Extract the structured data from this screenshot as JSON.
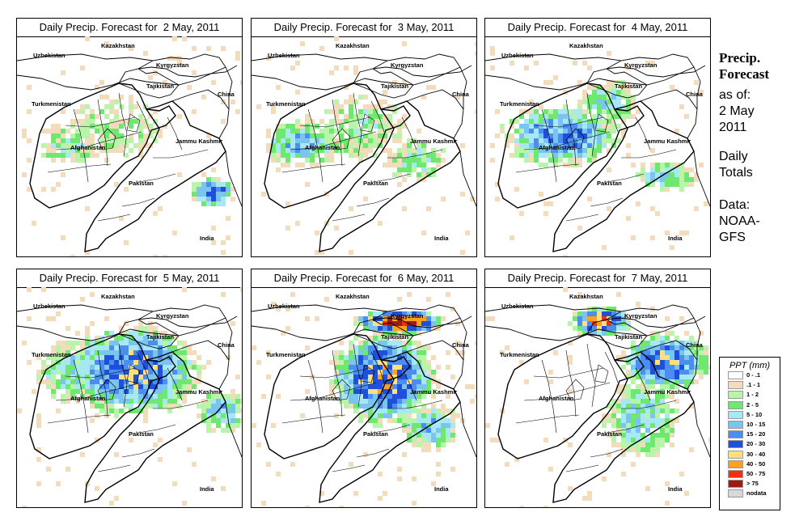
{
  "panels": [
    {
      "title": "Daily Precip. Forecast for  2 May, 2011"
    },
    {
      "title": "Daily Precip. Forecast for  3 May, 2011"
    },
    {
      "title": "Daily Precip. Forecast for  4 May, 2011"
    },
    {
      "title": "Daily Precip. Forecast for  5 May, 2011"
    },
    {
      "title": "Daily Precip. Forecast for  6 May, 2011"
    },
    {
      "title": "Daily Precip. Forecast for  7 May, 2011"
    }
  ],
  "map_labels": {
    "kazakhstan": "Kazakhstan",
    "uzbekistan": "Uzbekistan",
    "kyrgyzstan": "Kyrgyzstan",
    "tajikistan": "Tajikistan",
    "turkmenistan": "Turkmenistan",
    "china": "China",
    "afghanistan": "Afghanistan",
    "jammu_kashmir": "Jammu Kashmir",
    "pakistan": "Pakistan",
    "india": "India"
  },
  "sidebar": {
    "heading_line1": "Precip.",
    "heading_line2": "Forecast",
    "asof": "as of:",
    "date1": "2 May",
    "date2": "2011",
    "daily": "Daily",
    "totals": "Totals",
    "data": "Data:",
    "noaa": "NOAA-",
    "gfs": "GFS"
  },
  "legend": {
    "title": "PPT (mm)",
    "items": [
      {
        "range": "0 - .1",
        "color": "#ffffff"
      },
      {
        "range": ".1 - 1",
        "color": "#f2dcbc"
      },
      {
        "range": "1 - 2",
        "color": "#b8f5a8"
      },
      {
        "range": "2 - 5",
        "color": "#6ee86e"
      },
      {
        "range": "5 - 10",
        "color": "#a8e8f5"
      },
      {
        "range": "10 - 15",
        "color": "#7ac4f0"
      },
      {
        "range": "15 - 20",
        "color": "#4b8ef0"
      },
      {
        "range": "20 - 30",
        "color": "#1e50dc"
      },
      {
        "range": "30 - 40",
        "color": "#ffe080"
      },
      {
        "range": "40 - 50",
        "color": "#ffa020"
      },
      {
        "range": "50 - 75",
        "color": "#f03010"
      },
      {
        "range": "> 75",
        "color": "#a01a10"
      },
      {
        "range": "nodata",
        "color": "#d8d8d8"
      }
    ]
  }
}
